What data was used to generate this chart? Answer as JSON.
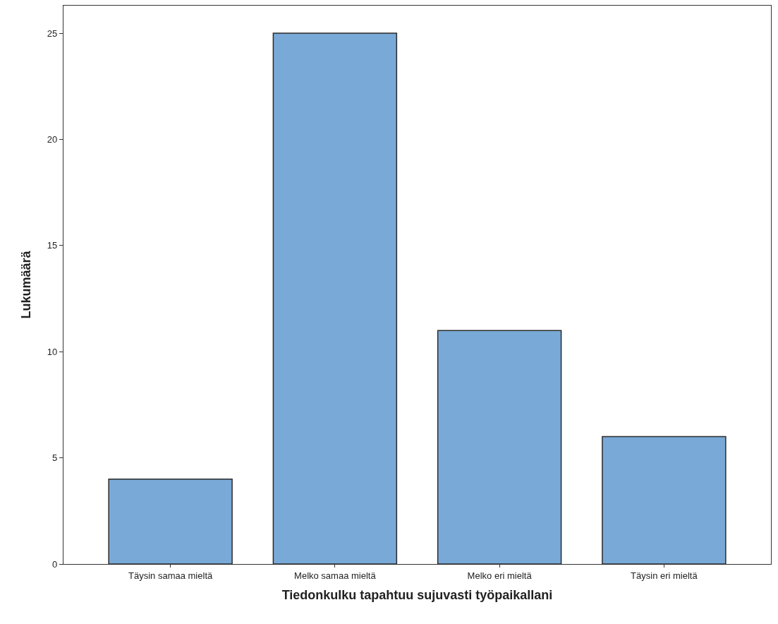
{
  "chart_data": {
    "type": "bar",
    "xlabel": "Tiedonkulku tapahtuu sujuvasti työpaikallani",
    "ylabel": "Lukumäärä",
    "categories": [
      "Täysin samaa mieltä",
      "Melko samaa mieltä",
      "Melko eri mieltä",
      "Täysin eri mieltä"
    ],
    "values": [
      4,
      25,
      11,
      6
    ],
    "color": "#79a9d6",
    "ylim": [
      0,
      26.3
    ],
    "yticks": [
      0,
      5,
      10,
      15,
      20,
      25
    ]
  }
}
